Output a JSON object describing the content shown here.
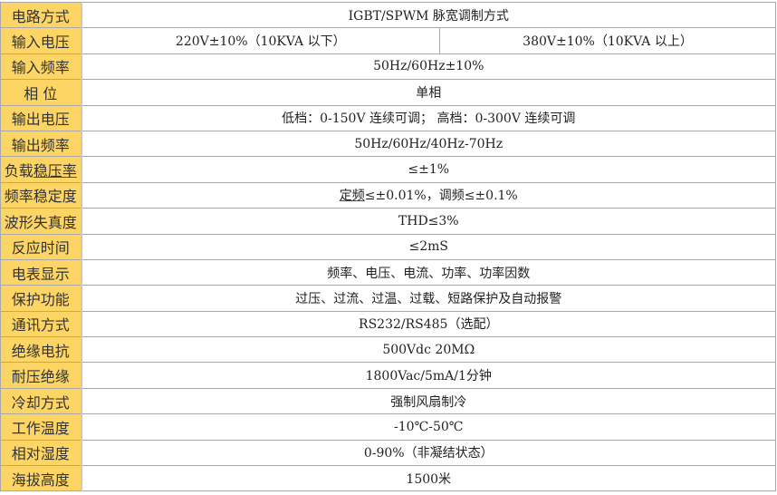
{
  "rows": [
    {
      "label": "电路方式",
      "value": "IGBT/SPWM 脉宽调制方式"
    },
    {
      "label": "输入电压",
      "value_left": "220V±10%（10KVA 以下）",
      "value_right": "380V±10%（10KVA 以上）"
    },
    {
      "label": "输入频率",
      "value": "50Hz/60Hz±10%"
    },
    {
      "label": "相  位",
      "value": "单相"
    },
    {
      "label": "输出电压",
      "value": "低档：0-150V 连续可调；  高档：0-300V 连续可调"
    },
    {
      "label": "输出频率",
      "value": "50Hz/60Hz/40Hz-70Hz"
    },
    {
      "label_a": "负载",
      "label_b": "稳压率",
      "value": "≤±1%"
    },
    {
      "label": "频率稳定度",
      "value_a": "定频",
      "value_b": "≤±0.01%，调频≤±0.1%"
    },
    {
      "label": "波形失真度",
      "value": "THD≤3%"
    },
    {
      "label": "反应时间",
      "value": "≤2mS"
    },
    {
      "label": "电表显示",
      "value": "频率、电压、电流、功率、功率因数"
    },
    {
      "label": "保护功能",
      "value": "过压、过流、过温、过载、短路保护及自动报警"
    },
    {
      "label": "通讯方式",
      "value": "RS232/RS485（选配）"
    },
    {
      "label": "绝缘电抗",
      "value": "500Vdc 20MΩ"
    },
    {
      "label": "耐压绝缘",
      "value": "1800Vac/5mA/1分钟"
    },
    {
      "label": "冷却方式",
      "value": "强制风扇制冷"
    },
    {
      "label": "工作温度",
      "value": "-10℃-50℃"
    },
    {
      "label": "相对湿度",
      "value": "0-90%（非凝结状态）"
    },
    {
      "label": "海拔高度",
      "value": "1500米"
    }
  ]
}
